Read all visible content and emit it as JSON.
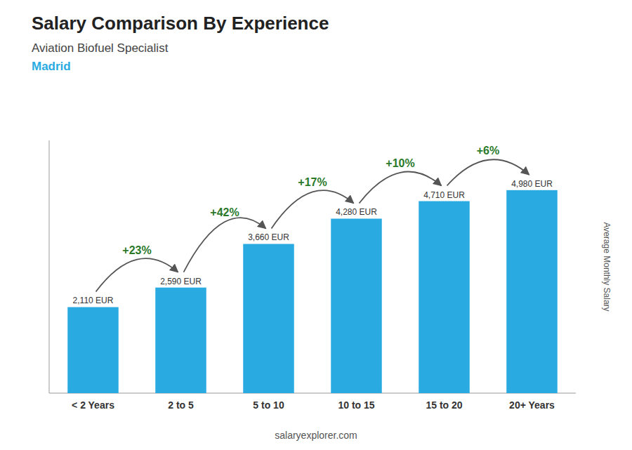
{
  "chart_data": {
    "type": "bar",
    "title": "Salary Comparison By Experience",
    "subtitle": "Aviation Biofuel Specialist",
    "city": "Madrid",
    "source": "salaryexplorer.com",
    "y_label": "Average Monthly Salary",
    "categories": [
      "< 2 Years",
      "2 to 5",
      "5 to 10",
      "10 to 15",
      "15 to 20",
      "20+ Years"
    ],
    "values": [
      2110,
      2590,
      3660,
      4280,
      4710,
      4980
    ],
    "value_labels": [
      "2,110 EUR",
      "2,590 EUR",
      "3,660 EUR",
      "4,280 EUR",
      "4,710 EUR",
      "4,980 EUR"
    ],
    "data_labels": true,
    "annotations": [
      "+23%",
      "+42%",
      "+17%",
      "+10%",
      "+6%"
    ],
    "color": "#29ABE2",
    "ylim": [
      0,
      6200
    ],
    "tick_labels": "x"
  }
}
